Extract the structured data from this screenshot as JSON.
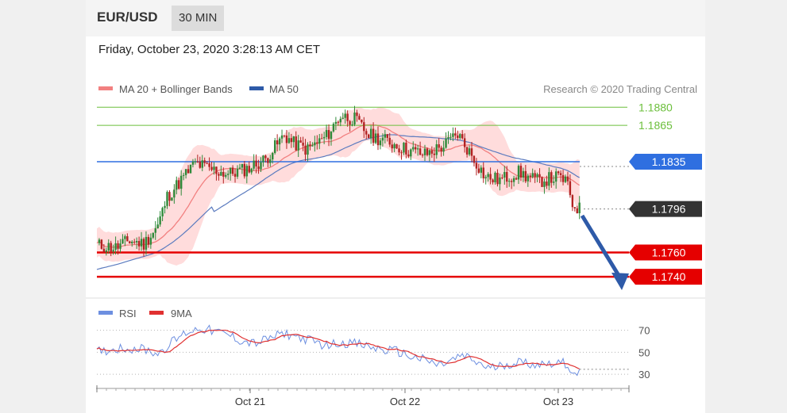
{
  "header": {
    "symbol": "EUR/USD",
    "timeframe": "30 MIN"
  },
  "datetime": "Friday, October 23, 2020 3:28:13 AM CET",
  "legend": {
    "ma20": "MA 20 + Bollinger Bands",
    "ma50": "MA 50",
    "credit": "Research © 2020 Trading Central"
  },
  "rsi_legend": {
    "rsi": "RSI",
    "ma9": "9MA"
  },
  "colors": {
    "candle_up": "#2f8a3a",
    "candle_down": "#b22222",
    "ma20": "#f28080",
    "ma50": "#5b7bbf",
    "bollinger_fill": "#ffd6d6",
    "resistance_green": "#6cbf3c",
    "blue_level": "#2f6fe0",
    "red_level": "#e50000",
    "current_label": "#333333",
    "rsi_line": "#6d8fe0",
    "rsi_ma": "#e03030",
    "arrow": "#2e5aa8"
  },
  "chart_data": [
    {
      "type": "candlestick",
      "title": "EUR/USD 30 MIN",
      "x_ticks": [
        "Oct 21",
        "Oct 22",
        "Oct 23"
      ],
      "ylim": [
        1.1725,
        1.189
      ],
      "overlays": [
        "MA 20 + Bollinger Bands",
        "MA 50"
      ],
      "approx_close_path": [
        [
          0,
          1.1766
        ],
        [
          8,
          1.1764
        ],
        [
          14,
          1.177
        ],
        [
          20,
          1.1767
        ],
        [
          26,
          1.1782
        ],
        [
          30,
          1.1806
        ],
        [
          36,
          1.182
        ],
        [
          42,
          1.1834
        ],
        [
          48,
          1.1829
        ],
        [
          56,
          1.1825
        ],
        [
          64,
          1.1829
        ],
        [
          72,
          1.1837
        ],
        [
          80,
          1.1857
        ],
        [
          84,
          1.185
        ],
        [
          90,
          1.1845
        ],
        [
          98,
          1.1856
        ],
        [
          104,
          1.1873
        ],
        [
          110,
          1.187
        ],
        [
          116,
          1.1857
        ],
        [
          124,
          1.1852
        ],
        [
          132,
          1.1845
        ],
        [
          140,
          1.1841
        ],
        [
          148,
          1.1848
        ],
        [
          154,
          1.1858
        ],
        [
          160,
          1.184
        ],
        [
          166,
          1.1822
        ],
        [
          172,
          1.182
        ],
        [
          180,
          1.1826
        ],
        [
          188,
          1.1819
        ],
        [
          196,
          1.1822
        ],
        [
          200,
          1.182
        ],
        [
          203,
          1.18
        ],
        [
          206,
          1.1796
        ]
      ],
      "levels": [
        {
          "value": 1.188,
          "label": "1.1880",
          "kind": "resistance"
        },
        {
          "value": 1.1865,
          "label": "1.1865",
          "kind": "resistance"
        },
        {
          "value": 1.1835,
          "label": "1.1835",
          "kind": "pivot"
        },
        {
          "value": 1.1796,
          "label": "1.1796",
          "kind": "last"
        },
        {
          "value": 1.176,
          "label": "1.1760",
          "kind": "target"
        },
        {
          "value": 1.174,
          "label": "1.1740",
          "kind": "target"
        }
      ],
      "forecast_arrow": {
        "from": 1.1796,
        "to": 1.174,
        "direction": "down"
      }
    },
    {
      "type": "line",
      "title": "RSI",
      "series": [
        {
          "name": "RSI"
        },
        {
          "name": "9MA"
        }
      ],
      "y_ticks": [
        70,
        50,
        30
      ],
      "ylim": [
        20,
        82
      ],
      "approx_rsi_path": [
        [
          0,
          50
        ],
        [
          10,
          54
        ],
        [
          20,
          53
        ],
        [
          26,
          49
        ],
        [
          32,
          59
        ],
        [
          38,
          68
        ],
        [
          44,
          72
        ],
        [
          50,
          69
        ],
        [
          56,
          66
        ],
        [
          62,
          60
        ],
        [
          68,
          58
        ],
        [
          74,
          63
        ],
        [
          80,
          67
        ],
        [
          86,
          64
        ],
        [
          92,
          60
        ],
        [
          98,
          56
        ],
        [
          104,
          59
        ],
        [
          110,
          58
        ],
        [
          116,
          55
        ],
        [
          122,
          52
        ],
        [
          128,
          51
        ],
        [
          134,
          46
        ],
        [
          140,
          43
        ],
        [
          146,
          38
        ],
        [
          150,
          41
        ],
        [
          156,
          47
        ],
        [
          162,
          41
        ],
        [
          168,
          35
        ],
        [
          174,
          39
        ],
        [
          180,
          41
        ],
        [
          188,
          39
        ],
        [
          196,
          41
        ],
        [
          200,
          40
        ],
        [
          203,
          33
        ],
        [
          206,
          31
        ]
      ]
    }
  ]
}
